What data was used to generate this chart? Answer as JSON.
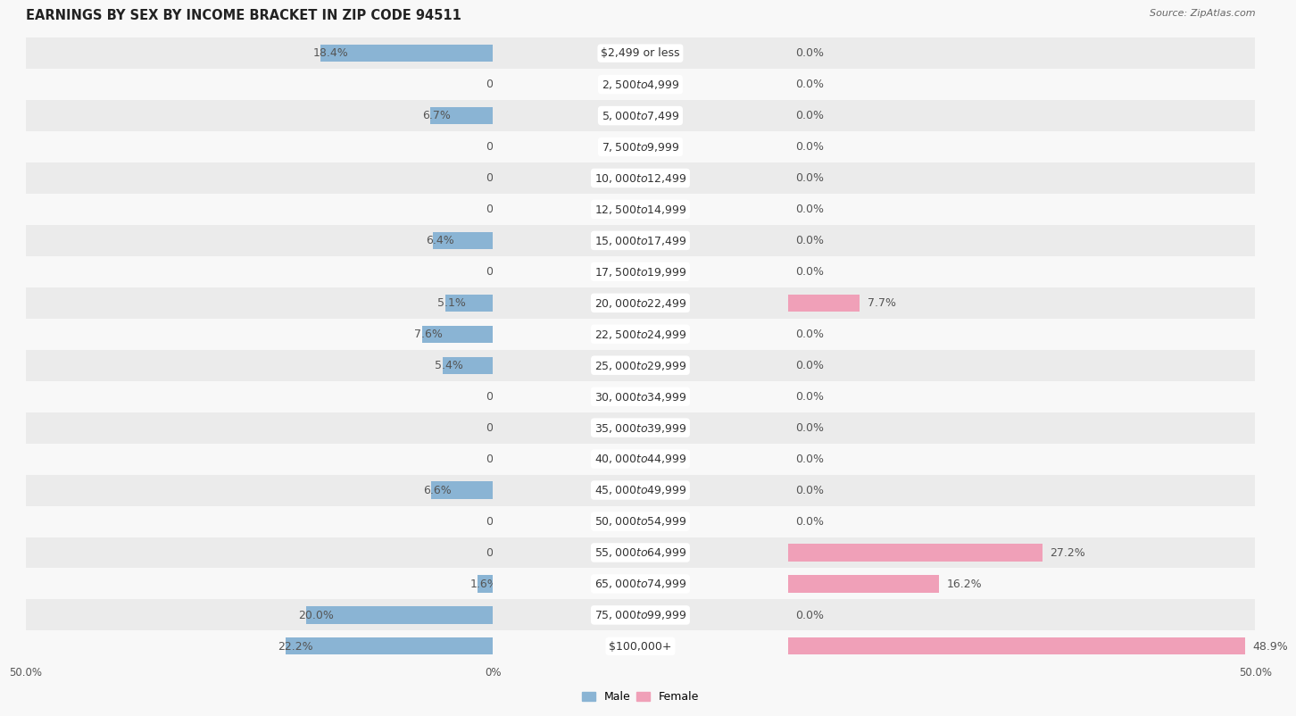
{
  "title": "EARNINGS BY SEX BY INCOME BRACKET IN ZIP CODE 94511",
  "source": "Source: ZipAtlas.com",
  "categories": [
    "$2,499 or less",
    "$2,500 to $4,999",
    "$5,000 to $7,499",
    "$7,500 to $9,999",
    "$10,000 to $12,499",
    "$12,500 to $14,999",
    "$15,000 to $17,499",
    "$17,500 to $19,999",
    "$20,000 to $22,499",
    "$22,500 to $24,999",
    "$25,000 to $29,999",
    "$30,000 to $34,999",
    "$35,000 to $39,999",
    "$40,000 to $44,999",
    "$45,000 to $49,999",
    "$50,000 to $54,999",
    "$55,000 to $64,999",
    "$65,000 to $74,999",
    "$75,000 to $99,999",
    "$100,000+"
  ],
  "male_values": [
    18.4,
    0.0,
    6.7,
    0.0,
    0.0,
    0.0,
    6.4,
    0.0,
    5.1,
    7.6,
    5.4,
    0.0,
    0.0,
    0.0,
    6.6,
    0.0,
    0.0,
    1.6,
    20.0,
    22.2
  ],
  "female_values": [
    0.0,
    0.0,
    0.0,
    0.0,
    0.0,
    0.0,
    0.0,
    0.0,
    7.7,
    0.0,
    0.0,
    0.0,
    0.0,
    0.0,
    0.0,
    0.0,
    27.2,
    16.2,
    0.0,
    48.9
  ],
  "male_color": "#8ab4d4",
  "female_color": "#f0a0b8",
  "male_label_color": "#6090b0",
  "female_label_color": "#d07090",
  "axis_max": 50.0,
  "legend_labels": [
    "Male",
    "Female"
  ],
  "row_alt_color": "#ebebeb",
  "row_base_color": "#f8f8f8",
  "bar_height": 0.55,
  "label_fontsize": 9,
  "cat_fontsize": 9,
  "title_fontsize": 10.5,
  "source_fontsize": 8
}
